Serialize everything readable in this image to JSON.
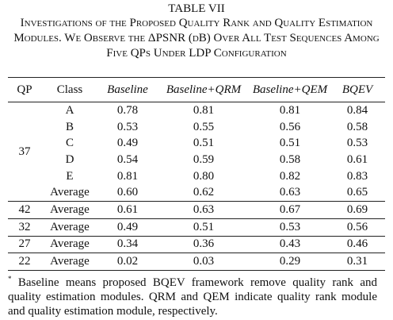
{
  "title": "TABLE VII",
  "caption": "Investigations of the Proposed Quality Rank and Quality Estimation Modules. We Observe the ΔPSNR (dB) Over All Test Sequences Among Five QPs Under LDP Configuration",
  "table": {
    "header": [
      "QP",
      "Class",
      "Baseline",
      "Baseline+QRM",
      "Baseline+QEM",
      "BQEV"
    ],
    "groups": [
      {
        "qp": "37",
        "rows": [
          [
            "A",
            "0.78",
            "0.81",
            "0.81",
            "0.84"
          ],
          [
            "B",
            "0.53",
            "0.55",
            "0.56",
            "0.58"
          ],
          [
            "C",
            "0.49",
            "0.51",
            "0.51",
            "0.53"
          ],
          [
            "D",
            "0.54",
            "0.59",
            "0.58",
            "0.61"
          ],
          [
            "E",
            "0.81",
            "0.80",
            "0.82",
            "0.83"
          ],
          [
            "Average",
            "0.60",
            "0.62",
            "0.63",
            "0.65"
          ]
        ]
      },
      {
        "qp": "42",
        "rows": [
          [
            "Average",
            "0.61",
            "0.63",
            "0.67",
            "0.69"
          ]
        ]
      },
      {
        "qp": "32",
        "rows": [
          [
            "Average",
            "0.49",
            "0.51",
            "0.53",
            "0.56"
          ]
        ]
      },
      {
        "qp": "27",
        "rows": [
          [
            "Average",
            "0.34",
            "0.36",
            "0.43",
            "0.46"
          ]
        ]
      },
      {
        "qp": "22",
        "rows": [
          [
            "Average",
            "0.02",
            "0.03",
            "0.29",
            "0.31"
          ]
        ]
      }
    ]
  },
  "footnote": {
    "marker": "*",
    "text": "Baseline means proposed BQEV framework remove quality rank and quality estimation modules. QRM and QEM indicate quality rank module and quality estimation module, respectively."
  }
}
